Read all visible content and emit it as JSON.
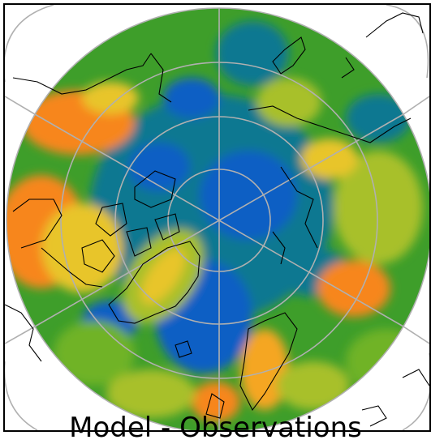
{
  "map": {
    "title": "Model - Observations",
    "projection": "north-polar-stereographic",
    "colors": {
      "deep_blue": "#0a5fc4",
      "teal_blue": "#0b7891",
      "teal": "#1a8a7a",
      "green": "#3e9e2a",
      "light_green": "#6fb327",
      "yellow_green": "#a8c02a",
      "yellow": "#e8c52a",
      "light_orange": "#f5a624",
      "orange": "#f7861b",
      "graticule": "#b0b0b0",
      "coastline": "#000000"
    }
  }
}
